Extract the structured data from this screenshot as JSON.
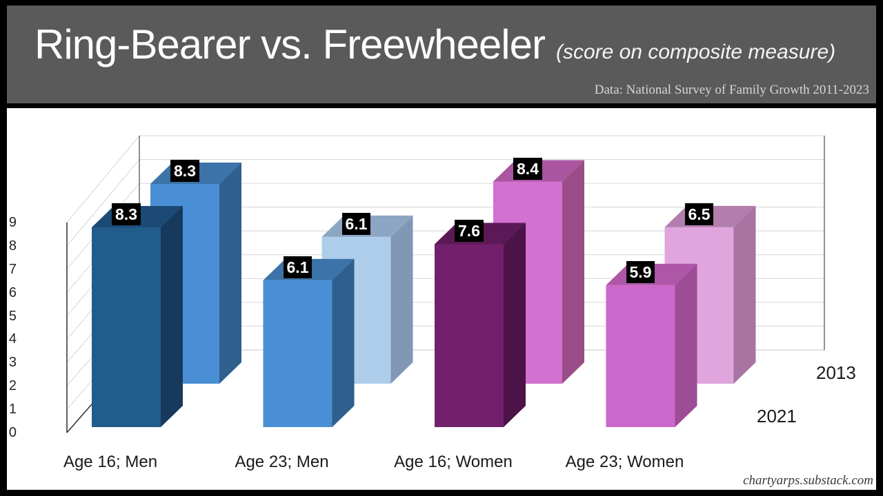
{
  "header": {
    "title": "Ring-Bearer vs. Freewheeler",
    "subtitle": "(score on composite measure)",
    "source": "Data: National Survey of Family Growth 2011-2023"
  },
  "watermark": "chartyarps.substack.com",
  "colors": {
    "frame": "#000000",
    "header_bg": "#5a5a5a",
    "plot_bg": "#ffffff",
    "grid": "#d9d9d9",
    "axis": "#3a3a3a",
    "value_label_bg": "#000000",
    "value_label_text": "#ffffff"
  },
  "chart_data": {
    "type": "bar",
    "projection": "3d",
    "title": "Ring-Bearer vs. Freewheeler",
    "subtitle": "(score on composite measure)",
    "xlabel": "",
    "ylabel": "",
    "ylim": [
      0,
      9
    ],
    "yticks": [
      0,
      1,
      2,
      3,
      4,
      5,
      6,
      7,
      8,
      9
    ],
    "grid": true,
    "legend_position": "right-depth-labels",
    "categories": [
      "Age 16; Men",
      "Age 23; Men",
      "Age 16; Women",
      "Age 23; Women"
    ],
    "series": [
      {
        "name": "2013",
        "row": "back",
        "values": [
          8.3,
          6.1,
          8.4,
          6.5
        ],
        "colors": [
          {
            "front": "#4A8FD5",
            "top": "#3C73A9",
            "side": "#2F5F8C"
          },
          {
            "front": "#AECDEB",
            "top": "#8CA6C4",
            "side": "#8098B6"
          },
          {
            "front": "#D271D0",
            "top": "#AA55A0",
            "side": "#9A4D86"
          },
          {
            "front": "#E0A5DD",
            "top": "#B27EAD",
            "side": "#A874A2"
          }
        ]
      },
      {
        "name": "2021",
        "row": "front",
        "values": [
          8.3,
          6.1,
          7.6,
          5.9
        ],
        "colors": [
          {
            "front": "#215C8C",
            "top": "#1C4A77",
            "side": "#16395C"
          },
          {
            "front": "#4A8FD5",
            "top": "#3C73A9",
            "side": "#2F5F8C"
          },
          {
            "front": "#73206C",
            "top": "#5C1957",
            "side": "#4B1347"
          },
          {
            "front": "#CC68CC",
            "top": "#AE57A8",
            "side": "#9D4C96"
          }
        ]
      }
    ]
  }
}
